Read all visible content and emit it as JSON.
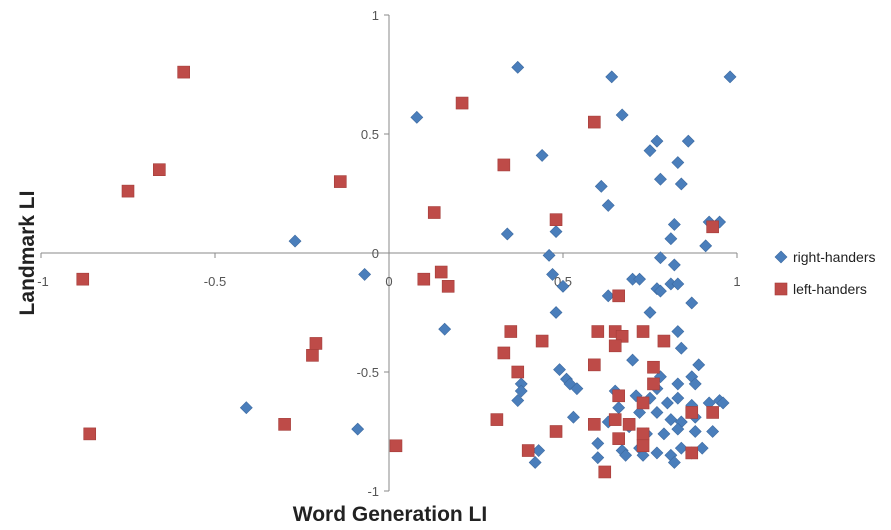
{
  "chart_data": {
    "type": "scatter",
    "xlabel": "Word Generation LI",
    "ylabel": "Landmark LI",
    "xlim": [
      -1,
      1
    ],
    "ylim": [
      -1,
      1
    ],
    "x_ticks": [
      "-1",
      "-0.5",
      "0",
      "0.5",
      "1"
    ],
    "y_ticks": [
      "-1",
      "-0.5",
      "0",
      "0.5",
      "1"
    ],
    "grid": false,
    "legend_position": "right",
    "series": [
      {
        "name": "right-handers",
        "marker": "diamond",
        "color": "#4a7ebb",
        "points": [
          [
            0.37,
            0.78
          ],
          [
            0.64,
            0.74
          ],
          [
            0.98,
            0.74
          ],
          [
            0.08,
            0.57
          ],
          [
            0.67,
            0.58
          ],
          [
            0.44,
            0.41
          ],
          [
            0.77,
            0.47
          ],
          [
            0.75,
            0.43
          ],
          [
            0.86,
            0.47
          ],
          [
            0.83,
            0.38
          ],
          [
            0.61,
            0.28
          ],
          [
            0.78,
            0.31
          ],
          [
            0.84,
            0.29
          ],
          [
            0.63,
            0.2
          ],
          [
            0.92,
            0.13
          ],
          [
            0.95,
            0.13
          ],
          [
            0.82,
            0.12
          ],
          [
            0.34,
            0.08
          ],
          [
            0.48,
            0.09
          ],
          [
            0.81,
            0.06
          ],
          [
            0.91,
            0.03
          ],
          [
            -0.27,
            0.05
          ],
          [
            0.46,
            -0.01
          ],
          [
            0.78,
            -0.02
          ],
          [
            0.82,
            -0.05
          ],
          [
            0.47,
            -0.09
          ],
          [
            -0.07,
            -0.09
          ],
          [
            0.7,
            -0.11
          ],
          [
            0.72,
            -0.11
          ],
          [
            0.81,
            -0.13
          ],
          [
            0.83,
            -0.13
          ],
          [
            0.77,
            -0.15
          ],
          [
            0.78,
            -0.16
          ],
          [
            0.5,
            -0.14
          ],
          [
            0.63,
            -0.18
          ],
          [
            0.87,
            -0.21
          ],
          [
            0.75,
            -0.25
          ],
          [
            0.48,
            -0.25
          ],
          [
            0.16,
            -0.32
          ],
          [
            0.83,
            -0.33
          ],
          [
            0.84,
            -0.4
          ],
          [
            0.89,
            -0.47
          ],
          [
            0.7,
            -0.45
          ],
          [
            0.38,
            -0.55
          ],
          [
            0.38,
            -0.58
          ],
          [
            0.49,
            -0.49
          ],
          [
            0.51,
            -0.53
          ],
          [
            0.52,
            -0.55
          ],
          [
            0.54,
            -0.57
          ],
          [
            0.37,
            -0.62
          ],
          [
            0.65,
            -0.58
          ],
          [
            0.78,
            -0.52
          ],
          [
            0.77,
            -0.57
          ],
          [
            0.83,
            -0.55
          ],
          [
            0.87,
            -0.52
          ],
          [
            0.88,
            -0.55
          ],
          [
            0.71,
            -0.6
          ],
          [
            0.75,
            -0.61
          ],
          [
            0.8,
            -0.63
          ],
          [
            0.83,
            -0.61
          ],
          [
            0.87,
            -0.64
          ],
          [
            0.92,
            -0.63
          ],
          [
            0.95,
            -0.62
          ],
          [
            0.96,
            -0.63
          ],
          [
            0.66,
            -0.65
          ],
          [
            0.72,
            -0.67
          ],
          [
            0.77,
            -0.67
          ],
          [
            0.81,
            -0.7
          ],
          [
            0.84,
            -0.71
          ],
          [
            0.88,
            -0.69
          ],
          [
            0.53,
            -0.69
          ],
          [
            0.63,
            -0.71
          ],
          [
            0.69,
            -0.73
          ],
          [
            0.74,
            -0.76
          ],
          [
            0.79,
            -0.76
          ],
          [
            0.83,
            -0.74
          ],
          [
            0.88,
            -0.75
          ],
          [
            0.93,
            -0.75
          ],
          [
            0.6,
            -0.8
          ],
          [
            0.67,
            -0.83
          ],
          [
            0.72,
            -0.82
          ],
          [
            0.77,
            -0.84
          ],
          [
            0.81,
            -0.85
          ],
          [
            0.84,
            -0.82
          ],
          [
            0.87,
            -0.84
          ],
          [
            0.9,
            -0.82
          ],
          [
            0.43,
            -0.83
          ],
          [
            0.42,
            -0.88
          ],
          [
            0.6,
            -0.86
          ],
          [
            0.68,
            -0.85
          ],
          [
            0.73,
            -0.85
          ],
          [
            0.82,
            -0.88
          ],
          [
            -0.41,
            -0.65
          ],
          [
            -0.09,
            -0.74
          ]
        ]
      },
      {
        "name": "left-handers",
        "marker": "square",
        "color": "#be4b48",
        "points": [
          [
            -0.59,
            0.76
          ],
          [
            0.21,
            0.63
          ],
          [
            0.59,
            0.55
          ],
          [
            -0.66,
            0.35
          ],
          [
            0.33,
            0.37
          ],
          [
            -0.75,
            0.26
          ],
          [
            -0.14,
            0.3
          ],
          [
            0.13,
            0.17
          ],
          [
            0.48,
            0.14
          ],
          [
            0.93,
            0.11
          ],
          [
            -0.88,
            -0.11
          ],
          [
            0.1,
            -0.11
          ],
          [
            0.15,
            -0.08
          ],
          [
            0.17,
            -0.14
          ],
          [
            0.66,
            -0.18
          ],
          [
            0.35,
            -0.33
          ],
          [
            0.6,
            -0.33
          ],
          [
            0.65,
            -0.33
          ],
          [
            0.67,
            -0.35
          ],
          [
            0.73,
            -0.33
          ],
          [
            0.79,
            -0.37
          ],
          [
            0.44,
            -0.37
          ],
          [
            0.65,
            -0.39
          ],
          [
            -0.21,
            -0.38
          ],
          [
            -0.22,
            -0.43
          ],
          [
            0.33,
            -0.42
          ],
          [
            0.37,
            -0.5
          ],
          [
            0.59,
            -0.47
          ],
          [
            0.76,
            -0.48
          ],
          [
            0.76,
            -0.55
          ],
          [
            0.66,
            -0.6
          ],
          [
            0.73,
            -0.63
          ],
          [
            0.65,
            -0.7
          ],
          [
            0.69,
            -0.72
          ],
          [
            0.87,
            -0.67
          ],
          [
            0.93,
            -0.67
          ],
          [
            0.31,
            -0.7
          ],
          [
            0.59,
            -0.72
          ],
          [
            -0.3,
            -0.72
          ],
          [
            0.73,
            -0.76
          ],
          [
            0.48,
            -0.75
          ],
          [
            0.66,
            -0.78
          ],
          [
            -0.86,
            -0.76
          ],
          [
            0.4,
            -0.83
          ],
          [
            0.73,
            -0.81
          ],
          [
            0.87,
            -0.84
          ],
          [
            0.02,
            -0.81
          ],
          [
            0.62,
            -0.92
          ]
        ]
      }
    ]
  }
}
